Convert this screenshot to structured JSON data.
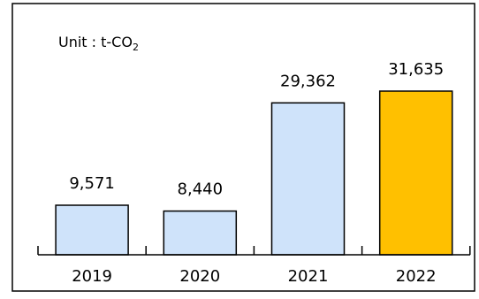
{
  "chart_data": {
    "type": "bar",
    "categories": [
      "2019",
      "2020",
      "2021",
      "2022"
    ],
    "values": [
      9571,
      8440,
      29362,
      31635
    ],
    "value_labels": [
      "9,571",
      "8,440",
      "29,362",
      "31,635"
    ],
    "unit_label": {
      "prefix": "Unit : t-CO",
      "subscript": "2"
    },
    "ylim": [
      0,
      35000
    ],
    "grid": false,
    "legend": "none",
    "colors": {
      "default_bar": "#CFE3FA",
      "highlight_bar": "#FFC000",
      "bar_stroke": "#000000",
      "frame": "#000000"
    },
    "highlight_index": 3
  }
}
